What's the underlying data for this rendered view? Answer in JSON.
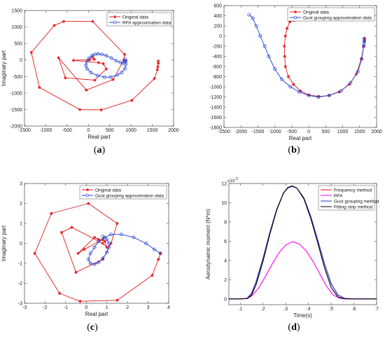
{
  "chart_data": [
    {
      "id": "a",
      "type": "line",
      "panel_label": "(a)",
      "xlabel": "Real part",
      "ylabel": "Imaginary part",
      "xlim": [
        -1500,
        2000
      ],
      "ylim": [
        -2000,
        1500
      ],
      "xticks": [
        -1500,
        -1000,
        -500,
        0,
        500,
        1000,
        1500,
        2000
      ],
      "yticks": [
        -2000,
        -1500,
        -1000,
        -500,
        0,
        500,
        1000,
        1500
      ],
      "legend": {
        "placement": "top-right"
      },
      "series": [
        {
          "name": "Original data",
          "color": "#e31a1c",
          "marker": "star",
          "x": [
            1640,
            1640,
            1630,
            1620,
            1550,
            1020,
            300,
            -200,
            -1150,
            -1340,
            -800,
            -580,
            100,
            850,
            830,
            580,
            -50,
            -700,
            -540,
            150,
            420,
            350,
            240,
            -350,
            140,
            100,
            20
          ],
          "y": [
            -30,
            -100,
            -200,
            -290,
            -560,
            -1220,
            -1510,
            -1500,
            -830,
            230,
            1050,
            1170,
            1170,
            170,
            0,
            -590,
            -910,
            70,
            -540,
            -610,
            -270,
            -110,
            -80,
            -10,
            20,
            90,
            0
          ]
        },
        {
          "name": "RFA approximation data",
          "color": "#1f3fd6",
          "marker": "circle",
          "x": [
            880,
            880,
            860,
            780,
            680,
            520,
            380,
            210,
            60,
            -30,
            -60,
            -40,
            10,
            80,
            150,
            230,
            320,
            420,
            540,
            650,
            750,
            810,
            860,
            870
          ],
          "y": [
            -30,
            -130,
            -260,
            -380,
            -450,
            -520,
            -520,
            -470,
            -380,
            -270,
            -160,
            -50,
            50,
            130,
            170,
            190,
            170,
            130,
            60,
            -20,
            -70,
            -110,
            -40,
            20
          ]
        }
      ]
    },
    {
      "id": "b",
      "type": "line",
      "panel_label": "(b)",
      "xlabel": "Real part",
      "ylabel": "",
      "xlim": [
        -2500,
        2000
      ],
      "ylim": [
        -1800,
        600
      ],
      "xticks": [
        -2500,
        -2000,
        -1500,
        -1000,
        -500,
        0,
        500,
        1000,
        1500,
        2000
      ],
      "yticks": [
        -1800,
        -1600,
        -1400,
        -1200,
        -1000,
        -800,
        -600,
        -400,
        -200,
        0,
        200,
        400,
        600
      ],
      "legend": {
        "placement": "top-right"
      },
      "series": [
        {
          "name": "Original data",
          "color": "#e31a1c",
          "marker": "star",
          "x": [
            1640,
            1640,
            1620,
            1550,
            1400,
            1200,
            900,
            600,
            300,
            0,
            -250,
            -450,
            -600,
            -690,
            -710,
            -720,
            -690,
            -640,
            -560,
            -430
          ],
          "y": [
            -50,
            -100,
            -200,
            -450,
            -750,
            -950,
            -1100,
            -1170,
            -1190,
            -1160,
            -1080,
            -950,
            -800,
            -600,
            -400,
            -200,
            0,
            150,
            280,
            310
          ]
        },
        {
          "name": "Gust grouping approximation data",
          "color": "#1f3fd6",
          "marker": "circle",
          "x": [
            1640,
            1640,
            1630,
            1620,
            1560,
            1450,
            1230,
            950,
            600,
            280,
            0,
            -280,
            -540,
            -800,
            -1000,
            -1180,
            -1300,
            -1430,
            -1550,
            -1650,
            -1760
          ],
          "y": [
            -50,
            -100,
            -150,
            -200,
            -450,
            -700,
            -920,
            -1080,
            -1170,
            -1200,
            -1170,
            -1100,
            -1000,
            -850,
            -650,
            -400,
            -200,
            0,
            200,
            350,
            420
          ]
        }
      ]
    },
    {
      "id": "c",
      "type": "line",
      "panel_label": "(c)",
      "xlabel": "Real part",
      "ylabel": "Imaginary part",
      "xlim": [
        -3,
        4
      ],
      "ylim": [
        -3,
        3
      ],
      "xticks": [
        -3,
        -2,
        -1,
        0,
        1,
        2,
        3,
        4
      ],
      "yticks": [
        -3,
        -2,
        -1,
        0,
        1,
        2,
        3
      ],
      "exponent": "x10",
      "legend": {
        "placement": "top-right"
      },
      "series": [
        {
          "name": "Original data",
          "color": "#e31a1c",
          "marker": "star",
          "x": [
            3.6,
            3.5,
            3.2,
            1.5,
            -0.3,
            -1.3,
            -2.5,
            -1.7,
            0.1,
            1.5,
            1.2,
            0.8,
            -0.5,
            -1.2,
            -0.7,
            0.8,
            1.0,
            0.9,
            0.6,
            0.4,
            -0.4,
            -0.1,
            0.8
          ],
          "y": [
            -0.5,
            -0.8,
            -1.6,
            -2.85,
            -2.9,
            -2.5,
            -0.5,
            1.5,
            2.0,
            1.0,
            0.0,
            -0.8,
            -1.45,
            0.55,
            0.8,
            0.0,
            -0.2,
            0.1,
            0.2,
            0.3,
            -0.5,
            -0.3,
            0.2
          ]
        },
        {
          "name": "Gust grouping approximation data",
          "color": "#1f3fd6",
          "marker": "circle",
          "x": [
            3.6,
            3.3,
            2.9,
            2.3,
            1.7,
            1.2,
            0.9,
            0.6,
            0.4,
            0.2,
            0.1,
            0.2,
            0.4,
            0.6,
            0.8,
            1.0,
            1.1,
            1.1,
            1.0,
            0.8
          ],
          "y": [
            -0.5,
            -0.3,
            0.0,
            0.3,
            0.45,
            0.45,
            0.3,
            0.1,
            -0.2,
            -0.5,
            -0.8,
            -1.0,
            -1.05,
            -0.95,
            -0.75,
            -0.45,
            -0.2,
            0.0,
            0.2,
            0.35
          ]
        }
      ]
    },
    {
      "id": "d",
      "type": "line",
      "panel_label": "(d)",
      "xlabel": "Time(s)",
      "ylabel": "Aerodynamic moment (N*m)",
      "xlim": [
        0.05,
        0.7
      ],
      "ylim": [
        -0.6,
        12
      ],
      "xticks": [
        0.1,
        0.2,
        0.3,
        0.4,
        0.5,
        0.6,
        0.7
      ],
      "yticks": [
        0,
        2,
        4,
        6,
        8,
        10,
        12
      ],
      "exponent": "x10^5",
      "legend": {
        "placement": "top-right"
      },
      "series": [
        {
          "name": "Frequency method",
          "color": "#ff0000",
          "x": [
            0.05,
            0.1,
            0.13,
            0.15,
            0.17,
            0.2,
            0.23,
            0.26,
            0.29,
            0.31,
            0.33,
            0.35,
            0.38,
            0.41,
            0.44,
            0.47,
            0.5,
            0.53,
            0.56,
            0.6,
            0.65,
            0.7
          ],
          "y": [
            0,
            0,
            0.05,
            0.6,
            1.8,
            4.2,
            6.9,
            9.3,
            11.0,
            11.55,
            11.7,
            11.5,
            10.5,
            8.6,
            6.2,
            3.7,
            1.6,
            0.4,
            0.05,
            0,
            0,
            0
          ]
        },
        {
          "name": "RFA",
          "color": "#ff00ff",
          "x": [
            0.05,
            0.1,
            0.13,
            0.15,
            0.18,
            0.21,
            0.24,
            0.27,
            0.3,
            0.33,
            0.36,
            0.39,
            0.42,
            0.45,
            0.48,
            0.51,
            0.54,
            0.57,
            0.6,
            0.7
          ],
          "y": [
            0,
            0,
            0.03,
            0.3,
            1.1,
            2.3,
            3.6,
            4.8,
            5.6,
            5.95,
            5.7,
            5.0,
            3.9,
            2.6,
            1.3,
            0.4,
            0.05,
            0,
            0,
            0
          ]
        },
        {
          "name": "Gust grouping method",
          "color": "#1f3fd6",
          "x": [
            0.05,
            0.1,
            0.13,
            0.15,
            0.17,
            0.2,
            0.23,
            0.26,
            0.29,
            0.31,
            0.33,
            0.35,
            0.38,
            0.41,
            0.44,
            0.47,
            0.5,
            0.53,
            0.56,
            0.6,
            0.65,
            0.7
          ],
          "y": [
            0,
            0,
            0.05,
            0.6,
            1.8,
            4.2,
            6.9,
            9.3,
            11.0,
            11.55,
            11.7,
            11.5,
            10.5,
            8.6,
            6.2,
            3.7,
            1.6,
            0.4,
            0.05,
            0,
            0,
            0
          ]
        },
        {
          "name": "Fitting strip method",
          "color": "#000000",
          "x": [
            0.05,
            0.1,
            0.13,
            0.15,
            0.17,
            0.2,
            0.23,
            0.26,
            0.29,
            0.31,
            0.33,
            0.35,
            0.38,
            0.41,
            0.44,
            0.47,
            0.5,
            0.53,
            0.56,
            0.6,
            0.65,
            0.7
          ],
          "y": [
            0,
            0,
            0.03,
            0.4,
            1.5,
            3.9,
            6.7,
            9.2,
            11.0,
            11.6,
            11.75,
            11.5,
            10.4,
            8.4,
            5.9,
            3.3,
            1.2,
            0.2,
            0,
            0,
            0,
            0
          ]
        }
      ]
    }
  ]
}
